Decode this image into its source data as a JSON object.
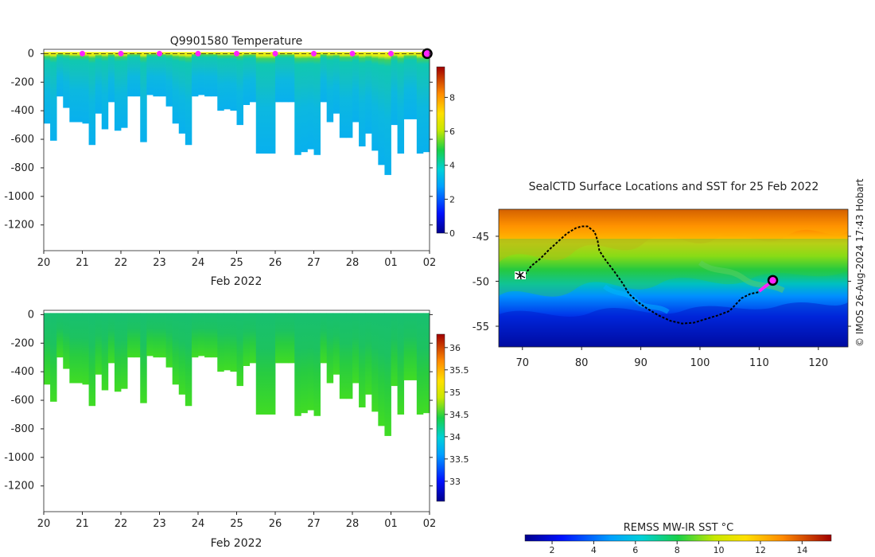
{
  "chart_data": [
    {
      "type": "heatmap",
      "id": "temperature-section",
      "title": "Q9901580  Temperature",
      "xlabel": "Feb 2022",
      "ylabel": "",
      "x_ticks": [
        "20",
        "21",
        "22",
        "23",
        "24",
        "25",
        "26",
        "27",
        "28",
        "01",
        "02"
      ],
      "xlim": [
        0,
        10
      ],
      "y_ticks": [
        0,
        -200,
        -400,
        -600,
        -800,
        -1000,
        -1200
      ],
      "ylim": [
        -1380,
        30
      ],
      "colorbar": {
        "ticks": [
          0,
          2,
          4,
          6,
          8
        ],
        "range": [
          0,
          9.8
        ]
      },
      "dive_max_depths": [
        490,
        610,
        300,
        380,
        480,
        480,
        490,
        640,
        420,
        530,
        340,
        540,
        520,
        300,
        300,
        620,
        290,
        300,
        300,
        370,
        490,
        560,
        640,
        300,
        290,
        300,
        300,
        400,
        390,
        400,
        500,
        360,
        340,
        700,
        700,
        700,
        340,
        340,
        340,
        710,
        690,
        670,
        710,
        340,
        480,
        420,
        590,
        590,
        480,
        650,
        560,
        680,
        780,
        850,
        500,
        700,
        460,
        460,
        700,
        690
      ],
      "surface_markers_x": [
        1,
        2,
        3,
        4,
        5,
        6,
        7,
        8,
        9
      ],
      "current_marker": {
        "x": 10,
        "depth": 0
      }
    },
    {
      "type": "heatmap",
      "id": "salinity-section",
      "title": "",
      "xlabel": "Feb 2022",
      "x_ticks": [
        "20",
        "21",
        "22",
        "23",
        "24",
        "25",
        "26",
        "27",
        "28",
        "01",
        "02"
      ],
      "xlim": [
        0,
        10
      ],
      "y_ticks": [
        0,
        -200,
        -400,
        -600,
        -800,
        -1000,
        -1200
      ],
      "ylim": [
        -1380,
        30
      ],
      "colorbar": {
        "ticks": [
          33,
          33.5,
          34,
          34.5,
          35,
          35.5,
          36
        ],
        "range": [
          32.55,
          36.3
        ]
      }
    },
    {
      "type": "scatter",
      "id": "sst-map",
      "title": "SealCTD Surface Locations and SST for 25 Feb 2022",
      "x_ticks": [
        70,
        80,
        90,
        100,
        110,
        120
      ],
      "xlim": [
        66,
        125
      ],
      "y_ticks": [
        -45,
        -50,
        -55
      ],
      "ylim": [
        -57.3,
        -42
      ],
      "track": {
        "x": [
          70,
          71.5,
          73,
          74.5,
          76,
          77.5,
          79,
          80,
          81,
          82.2,
          82.7,
          83,
          84,
          85.5,
          87,
          88,
          89.5,
          91,
          93,
          95,
          97,
          99,
          101,
          103,
          105,
          106,
          107,
          108.5,
          110,
          112.3
        ],
        "y": [
          -49.6,
          -48.3,
          -47.5,
          -46.5,
          -45.6,
          -44.7,
          -44.1,
          -43.9,
          -43.9,
          -44.5,
          -45.5,
          -46.6,
          -47.6,
          -48.9,
          -50.3,
          -51.4,
          -52.3,
          -53,
          -53.8,
          -54.4,
          -54.7,
          -54.6,
          -54.2,
          -53.8,
          -53.3,
          -52.6,
          -51.9,
          -51.4,
          -51.2,
          -49.9
        ]
      },
      "recent_track": {
        "x": [
          110,
          111,
          111.8
        ],
        "y": [
          -51.1,
          -50.6,
          -50.2
        ]
      },
      "current_position": {
        "x": 112.3,
        "y": -49.9
      },
      "colorbar": {
        "label": "REMSS MW-IR SST °C",
        "ticks": [
          2,
          4,
          6,
          8,
          10,
          12,
          14
        ],
        "range": [
          0.7,
          15.4
        ]
      }
    }
  ],
  "credit": "© IMOS 26-Aug-2024 17:43 Hobart",
  "colors": {
    "surface_marker": "#ff22ff",
    "current_marker_fill": "#ff22ff",
    "current_marker_ring": "#000000",
    "track": "#000000",
    "axis": "#000000"
  }
}
